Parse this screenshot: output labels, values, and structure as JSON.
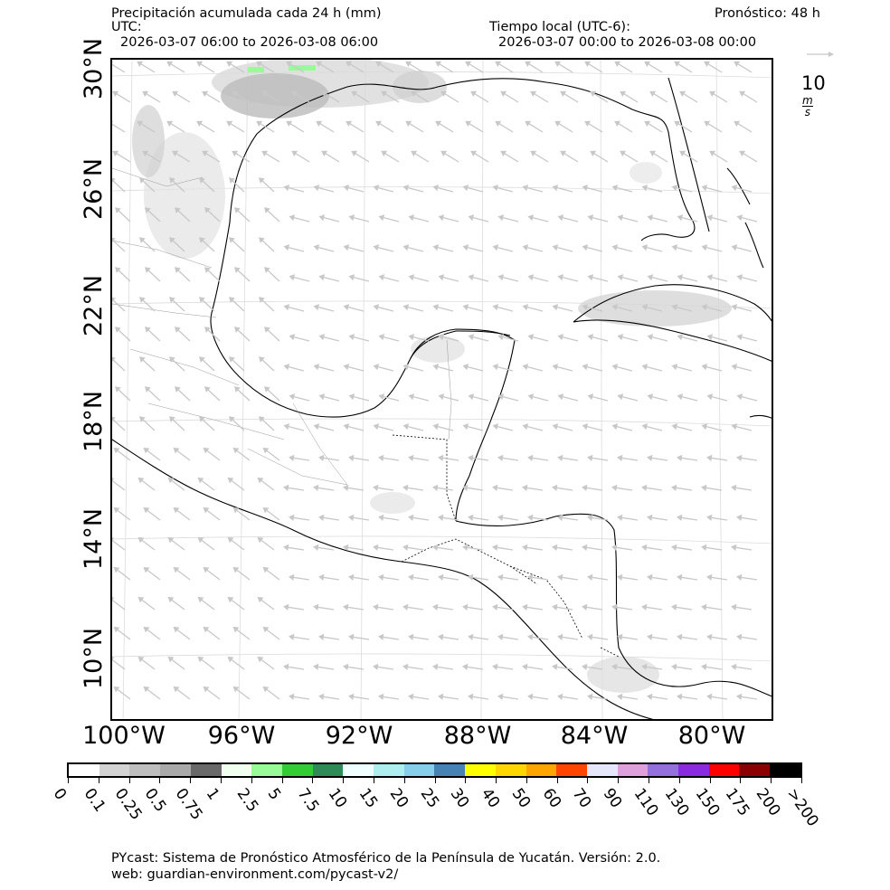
{
  "header": {
    "title": "Precipitación acumulada cada 24 h (mm)",
    "utc_label": "UTC:",
    "utc_range": "2026-03-07 06:00 to 2026-03-08 06:00",
    "local_label": "Tiempo local (UTC-6):",
    "local_range": "2026-03-07 00:00 to 2026-03-08 00:00",
    "forecast": "Pronóstico: 48 h"
  },
  "map": {
    "lat_labels": [
      "30°N",
      "26°N",
      "22°N",
      "18°N",
      "14°N",
      "10°N"
    ],
    "lon_labels": [
      "100°W",
      "96°W",
      "92°W",
      "88°W",
      "84°W",
      "80°W"
    ],
    "wind_key": {
      "label": "10",
      "unit_num": "m",
      "unit_den": "s",
      "color": "#c8c8c8"
    },
    "land_color": "#ffffff",
    "coast_color": "#000000",
    "vector_color": "#c8c8c8"
  },
  "colorbar": {
    "labels": [
      "0",
      "0.1",
      "0.25",
      "0.5",
      "0.75",
      "1",
      "2.5",
      "5",
      "7.5",
      "10",
      "15",
      "20",
      "25",
      "30",
      "40",
      "50",
      "60",
      "70",
      "90",
      "110",
      "130",
      "150",
      "175",
      "200",
      ">200"
    ],
    "colors": [
      "#ffffff",
      "#d3d3d3",
      "#bebebe",
      "#a9a9a9",
      "#696969",
      "#f0fff0",
      "#98fb98",
      "#32cd32",
      "#2e8b57",
      "#f0ffff",
      "#afeeee",
      "#87ceeb",
      "#4682b4",
      "#ffff00",
      "#ffd700",
      "#ffa500",
      "#ff4500",
      "#e6e6fa",
      "#dda0dd",
      "#9370db",
      "#8a2be2",
      "#ff0000",
      "#8b0000",
      "#000000"
    ]
  },
  "footer": {
    "line1": "PYcast: Sistema de Pronóstico Atmosférico de la Península de Yucatán. Versión: 2.0.",
    "line2": "web: guardian-environment.com/pycast-v2/"
  }
}
